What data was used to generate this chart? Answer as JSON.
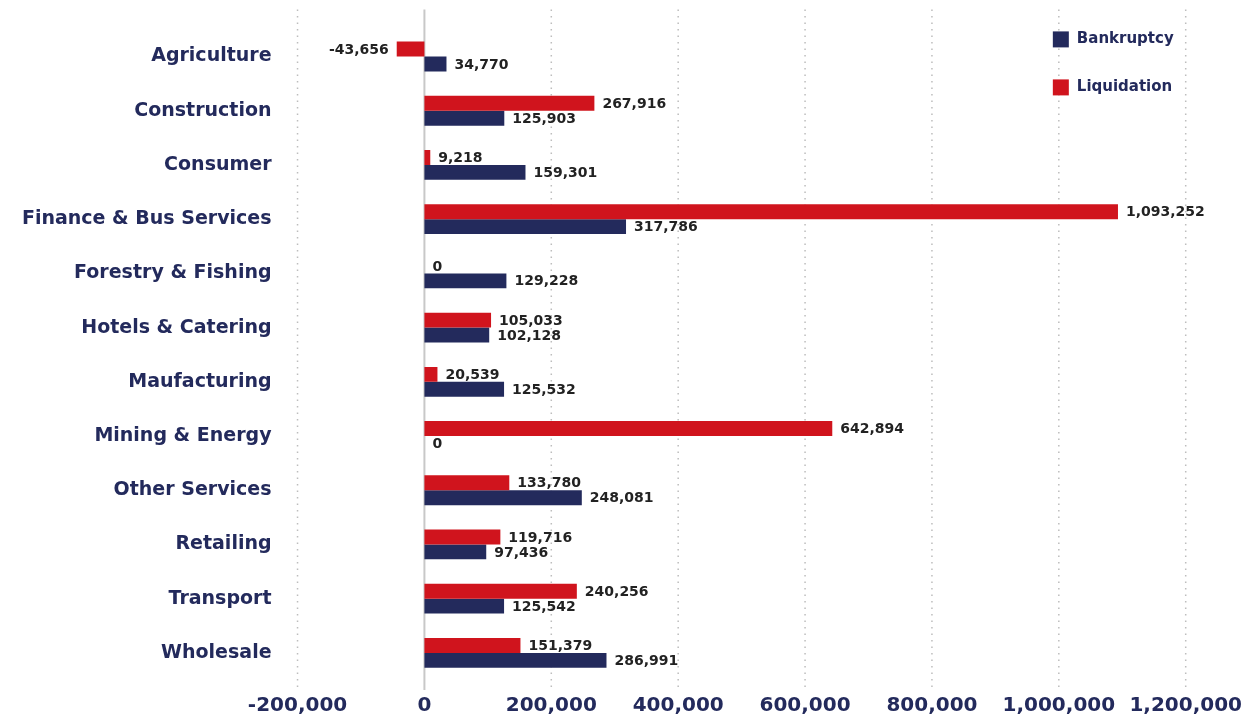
{
  "chart_data": {
    "type": "bar",
    "orientation": "horizontal",
    "categories": [
      "Agriculture",
      "Construction",
      "Consumer",
      "Finance & Bus Services",
      "Forestry & Fishing",
      "Hotels & Catering",
      "Maufacturing",
      "Mining & Energy",
      "Other Services",
      "Retailing",
      "Transport",
      "Wholesale"
    ],
    "series": [
      {
        "name": "Bankruptcy",
        "color": "#232a5c",
        "values": [
          34770,
          125903,
          159301,
          317786,
          129228,
          102128,
          125532,
          0,
          248081,
          97436,
          125542,
          286991
        ],
        "value_labels": [
          "34,770",
          "125,903",
          "159,301",
          "317,786",
          "129,228",
          "102,128",
          "125,532",
          "0",
          "248,081",
          "97,436",
          "125,542",
          "286,991"
        ]
      },
      {
        "name": "Liquidation",
        "color": "#d0141d",
        "values": [
          -43656,
          267916,
          9218,
          1093252,
          0,
          105033,
          20539,
          642894,
          133780,
          119716,
          240256,
          151379
        ],
        "value_labels": [
          "-43,656",
          "267,916",
          "9,218",
          "1,093,252",
          "0",
          "105,033",
          "20,539",
          "642,894",
          "133,780",
          "119,716",
          "240,256",
          "151,379"
        ]
      }
    ],
    "xlim": [
      -200000,
      1200000
    ],
    "xticks": [
      {
        "value": -200000,
        "label": "-200,000"
      },
      0,
      {
        "value": 200000,
        "label": "200,000"
      },
      {
        "value": 400000,
        "label": "400,000"
      },
      {
        "value": 600000,
        "label": "600,000"
      },
      {
        "value": 800000,
        "label": "800,000"
      },
      {
        "value": 1000000,
        "label": "1,000,000"
      },
      {
        "value": 1200000,
        "label": "1,200,000"
      }
    ],
    "grid": "x",
    "legend": "top right"
  }
}
